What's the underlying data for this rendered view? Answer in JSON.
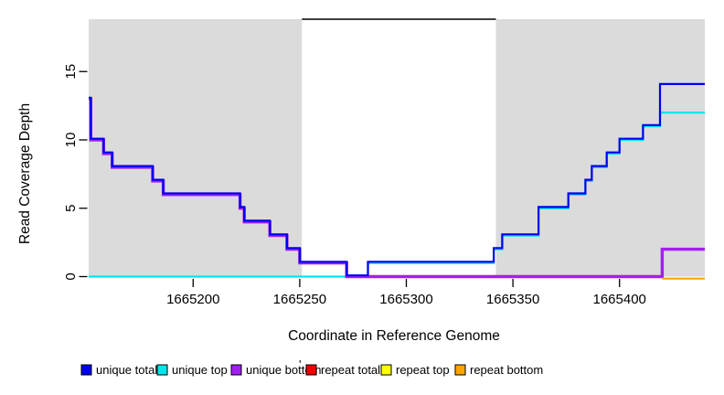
{
  "chart_data": {
    "type": "step-line",
    "title": "",
    "xlabel": "Coordinate in Reference Genome",
    "ylabel": "Read Coverage Depth",
    "x_ticks": [
      1665200,
      1665250,
      1665300,
      1665350,
      1665400
    ],
    "y_ticks": [
      0,
      5,
      10,
      15
    ],
    "xlim": [
      1665151,
      1665440
    ],
    "ylim": [
      0,
      18.8
    ],
    "grid": "off",
    "background_shading": {
      "color": "#DBDBDB",
      "regions": [
        {
          "start": 1665151,
          "end": 1665251
        },
        {
          "start": 1665342,
          "end": 1665440
        }
      ]
    },
    "gap_top_line": {
      "start": 1665251,
      "end": 1665342,
      "color": "#000000"
    },
    "series": [
      {
        "name": "unique total",
        "color": "#0000EE",
        "points": [
          [
            1665151,
            13
          ],
          [
            1665152,
            10
          ],
          [
            1665158,
            9
          ],
          [
            1665162,
            8
          ],
          [
            1665181,
            7
          ],
          [
            1665186,
            6
          ],
          [
            1665222,
            5
          ],
          [
            1665224,
            4
          ],
          [
            1665236,
            3
          ],
          [
            1665244,
            2
          ],
          [
            1665250,
            1
          ],
          [
            1665272,
            0
          ],
          [
            1665282,
            1
          ],
          [
            1665341,
            2
          ],
          [
            1665345,
            3
          ],
          [
            1665362,
            5
          ],
          [
            1665376,
            6
          ],
          [
            1665384,
            7
          ],
          [
            1665387,
            8
          ],
          [
            1665394,
            9
          ],
          [
            1665400,
            10
          ],
          [
            1665411,
            11
          ],
          [
            1665419,
            14
          ],
          [
            1665440,
            14
          ]
        ]
      },
      {
        "name": "unique top",
        "color": "#00E5EE",
        "points": [
          [
            1665151,
            0
          ],
          [
            1665282,
            1
          ],
          [
            1665341,
            2
          ],
          [
            1665345,
            3
          ],
          [
            1665362,
            5
          ],
          [
            1665376,
            6
          ],
          [
            1665384,
            7
          ],
          [
            1665387,
            8
          ],
          [
            1665394,
            9
          ],
          [
            1665400,
            10
          ],
          [
            1665411,
            11
          ],
          [
            1665419,
            12
          ],
          [
            1665440,
            12
          ]
        ]
      },
      {
        "name": "unique bottom",
        "color": "#A020F0",
        "points": [
          [
            1665151,
            13
          ],
          [
            1665152,
            10
          ],
          [
            1665158,
            9
          ],
          [
            1665162,
            8
          ],
          [
            1665181,
            7
          ],
          [
            1665186,
            6
          ],
          [
            1665222,
            5
          ],
          [
            1665224,
            4
          ],
          [
            1665236,
            3
          ],
          [
            1665244,
            2
          ],
          [
            1665250,
            1
          ],
          [
            1665272,
            0
          ],
          [
            1665420,
            2
          ],
          [
            1665440,
            2
          ]
        ]
      },
      {
        "name": "repeat total",
        "color": "#EE0000",
        "points": []
      },
      {
        "name": "repeat top",
        "color": "#FFFF00",
        "points": []
      },
      {
        "name": "repeat bottom",
        "color": "#FFA500",
        "points": [
          [
            1665420,
            0
          ],
          [
            1665440,
            0
          ]
        ]
      }
    ],
    "legend": [
      {
        "label": "unique total",
        "color": "#0000EE"
      },
      {
        "label": "unique top",
        "color": "#00E5EE"
      },
      {
        "label": "unique bottom",
        "color": "#A020F0"
      },
      {
        "label": "repeat total",
        "color": "#EE0000"
      },
      {
        "label": "repeat top",
        "color": "#FFFF00"
      },
      {
        "label": "repeat bottom",
        "color": "#FFA500"
      }
    ],
    "stray_mark": "'"
  }
}
